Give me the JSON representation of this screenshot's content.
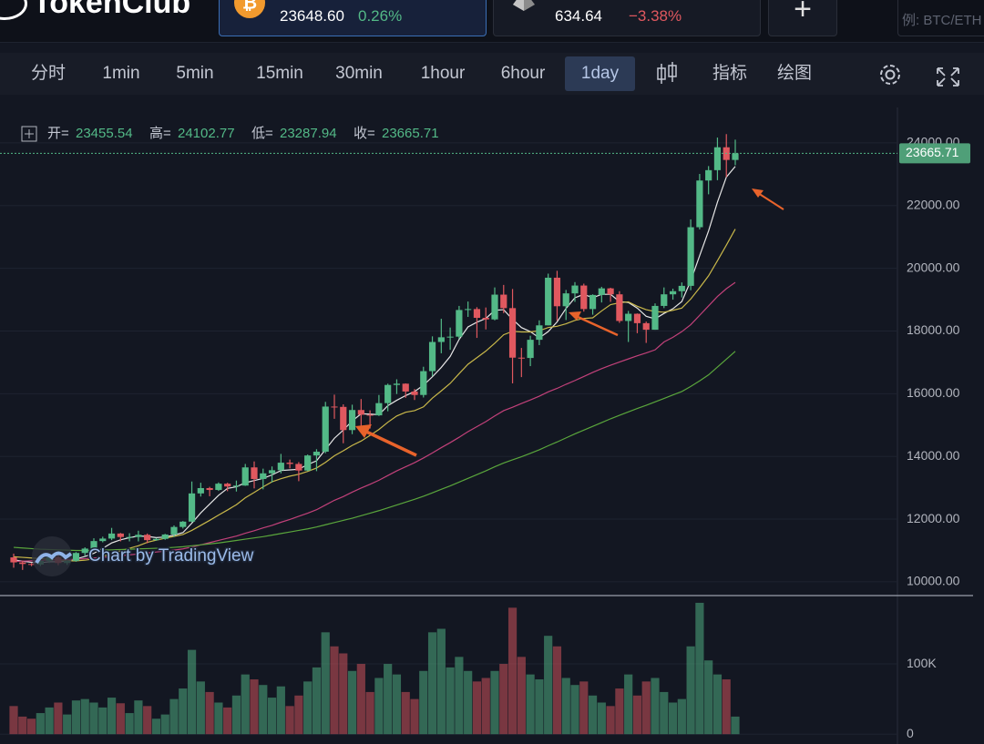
{
  "header": {
    "logo": "TokenClub",
    "tickers": [
      {
        "price": "23648.60",
        "change": "0.26%"
      },
      {
        "price": "634.64",
        "change": "−3.38%"
      }
    ],
    "search_placeholder": "例: BTC/ETH"
  },
  "toolbar": {
    "intervals": [
      "分时",
      "1min",
      "5min",
      "15min",
      "30min",
      "1hour",
      "6hour",
      "1day"
    ],
    "active_index": 7,
    "tools": [
      "指标",
      "绘图"
    ]
  },
  "chart_data": {
    "type": "candlestick",
    "watermark": "Chart by TradingView",
    "legend_labels": [
      "开=",
      "高=",
      "低=",
      "收="
    ],
    "up_color": "#53b987",
    "down_color": "#e0585f",
    "open": [
      10780,
      10620,
      10570,
      10550,
      10670,
      10790,
      10600,
      10670,
      10920,
      11060,
      11300,
      11380,
      11540,
      11430,
      11430,
      11500,
      11330,
      11370,
      11510,
      11750,
      11920,
      12820,
      12990,
      12930,
      13130,
      13040,
      13070,
      13650,
      13280,
      13460,
      13560,
      13800,
      13760,
      13550,
      14030,
      14150,
      15590,
      15580,
      14840,
      15480,
      15330,
      15310,
      15700,
      16280,
      16320,
      16070,
      15960,
      16720,
      17650,
      17800,
      17820,
      18670,
      18700,
      18420,
      18370,
      19160,
      18730,
      17150,
      17140,
      17720,
      18180,
      19700,
      18790,
      19200,
      19450,
      18700,
      19150,
      19360,
      19170,
      18320,
      18550,
      18250,
      18040,
      18800,
      19170,
      19270,
      19440,
      21310,
      22800,
      23130,
      23860,
      23455.54
    ],
    "high": [
      10900,
      10680,
      10600,
      10700,
      10800,
      10950,
      10690,
      10950,
      11100,
      11390,
      11440,
      11720,
      11560,
      11550,
      11630,
      11540,
      11400,
      11530,
      11800,
      11940,
      13200,
      13160,
      13030,
      13170,
      13160,
      13230,
      13760,
      13840,
      13610,
      13680,
      14080,
      13900,
      13820,
      14060,
      14230,
      15740,
      15970,
      15660,
      15650,
      15830,
      15470,
      15960,
      16320,
      16460,
      16330,
      16150,
      16860,
      17830,
      18390,
      18110,
      18800,
      18940,
      18760,
      18750,
      19390,
      19470,
      19340,
      17460,
      17850,
      18340,
      19830,
      19920,
      19310,
      19560,
      19510,
      19170,
      19410,
      19380,
      19270,
      18640,
      18560,
      18300,
      18880,
      19390,
      19350,
      19550,
      21560,
      23010,
      23260,
      24170,
      24280,
      24102.77
    ],
    "low": [
      10450,
      10380,
      10500,
      10500,
      10600,
      10530,
      10540,
      10640,
      10830,
      11010,
      11260,
      11330,
      11290,
      11290,
      11290,
      11230,
      11310,
      11340,
      11430,
      11700,
      11900,
      12720,
      12730,
      12900,
      12890,
      12880,
      13060,
      12980,
      12950,
      13170,
      13460,
      13620,
      13210,
      13530,
      13530,
      14100,
      15200,
      14420,
      14710,
      14880,
      14890,
      15290,
      15440,
      15990,
      15870,
      15800,
      15880,
      16560,
      17290,
      17400,
      17750,
      18450,
      17780,
      18050,
      18340,
      18570,
      16330,
      16530,
      16880,
      17550,
      18180,
      18330,
      18350,
      18930,
      18620,
      18520,
      18910,
      18930,
      18260,
      17650,
      17930,
      17620,
      18040,
      18730,
      19000,
      19070,
      19300,
      21240,
      22360,
      22810,
      22910,
      23287.94
    ],
    "close": [
      10620,
      10570,
      10550,
      10670,
      10790,
      10600,
      10670,
      10920,
      11060,
      11300,
      11380,
      11540,
      11430,
      11430,
      11500,
      11330,
      11370,
      11510,
      11750,
      11920,
      12820,
      12990,
      12930,
      13130,
      13040,
      13070,
      13650,
      13280,
      13460,
      13560,
      13800,
      13760,
      13550,
      14030,
      14150,
      15590,
      15580,
      14840,
      15480,
      15330,
      15310,
      15700,
      16280,
      16320,
      16070,
      15960,
      16720,
      17650,
      17800,
      17820,
      18670,
      18700,
      18420,
      18370,
      19160,
      18730,
      17150,
      17140,
      17720,
      18180,
      19700,
      18790,
      19200,
      19450,
      18700,
      19150,
      19360,
      19170,
      18320,
      18550,
      18250,
      18040,
      18800,
      19170,
      19270,
      19440,
      21310,
      22800,
      23130,
      23860,
      23455.54,
      23665.71
    ],
    "moving_averages": [
      {
        "color": "#e6e6e6",
        "values": [
          10700,
          10660,
          10620,
          10610,
          10640,
          10640,
          10660,
          10730,
          10810,
          10910,
          11070,
          11240,
          11340,
          11410,
          11460,
          11450,
          11410,
          11430,
          11490,
          11570,
          11870,
          12200,
          12480,
          12760,
          12980,
          13030,
          13160,
          13230,
          13300,
          13410,
          13550,
          13570,
          13590,
          13740,
          13860,
          14220,
          14580,
          14840,
          15130,
          15360,
          15350,
          15330,
          15620,
          15790,
          15940,
          16070,
          16270,
          16540,
          16840,
          17190,
          17730,
          18130,
          18280,
          18400,
          18660,
          18680,
          18370,
          18110,
          17980,
          17780,
          17980,
          18290,
          18720,
          19060,
          19170,
          19060,
          19170,
          19170,
          18940,
          18910,
          18730,
          18470,
          18390,
          18560,
          18710,
          18940,
          19600,
          20400,
          21190,
          22110,
          22910,
          23250
        ]
      },
      {
        "color": "#c9b84a",
        "values": [
          10800,
          10780,
          10760,
          10740,
          10720,
          10690,
          10670,
          10670,
          10690,
          10730,
          10810,
          10900,
          10990,
          11070,
          11150,
          11260,
          11330,
          11390,
          11450,
          11510,
          11640,
          11800,
          11960,
          12130,
          12290,
          12460,
          12680,
          12850,
          13030,
          13190,
          13290,
          13370,
          13430,
          13520,
          13630,
          13810,
          14020,
          14180,
          14350,
          14490,
          14670,
          14860,
          15090,
          15290,
          15410,
          15460,
          15580,
          15860,
          16090,
          16330,
          16640,
          16940,
          17150,
          17360,
          17610,
          17880,
          17990,
          17970,
          17970,
          18010,
          18110,
          18150,
          18230,
          18340,
          18400,
          18420,
          18640,
          18840,
          18900,
          18930,
          18790,
          18680,
          18620,
          18600,
          18660,
          18730,
          19020,
          19380,
          19760,
          20240,
          20740,
          21250
        ]
      },
      {
        "color": "#c2417a",
        "values": [
          10650,
          10660,
          10670,
          10680,
          10690,
          10700,
          10710,
          10720,
          10740,
          10760,
          10780,
          10800,
          10830,
          10860,
          10890,
          10920,
          10950,
          10980,
          11010,
          11050,
          11110,
          11180,
          11250,
          11320,
          11390,
          11460,
          11550,
          11630,
          11720,
          11800,
          11900,
          11990,
          12090,
          12190,
          12300,
          12450,
          12600,
          12720,
          12860,
          12990,
          13110,
          13240,
          13390,
          13540,
          13670,
          13800,
          13950,
          14110,
          14280,
          14440,
          14610,
          14790,
          14950,
          15110,
          15290,
          15460,
          15570,
          15690,
          15800,
          15920,
          16060,
          16170,
          16300,
          16420,
          16550,
          16680,
          16800,
          16910,
          17010,
          17110,
          17210,
          17300,
          17400,
          17650,
          17800,
          17980,
          18200,
          18500,
          18800,
          19100,
          19350,
          19550
        ]
      },
      {
        "color": "#5aa63c",
        "values": [
          11100,
          11080,
          11060,
          11040,
          11030,
          11020,
          11010,
          11000,
          11000,
          11000,
          11010,
          11020,
          11030,
          11040,
          11050,
          11060,
          11070,
          11080,
          11100,
          11120,
          11150,
          11180,
          11210,
          11240,
          11280,
          11320,
          11360,
          11400,
          11440,
          11490,
          11540,
          11590,
          11640,
          11690,
          11750,
          11820,
          11890,
          11960,
          12030,
          12110,
          12190,
          12270,
          12360,
          12450,
          12540,
          12630,
          12730,
          12840,
          12950,
          13060,
          13180,
          13300,
          13420,
          13540,
          13670,
          13790,
          13890,
          13990,
          14100,
          14210,
          14340,
          14460,
          14590,
          14720,
          14840,
          14960,
          15080,
          15200,
          15310,
          15420,
          15530,
          15630,
          15740,
          15850,
          15960,
          16070,
          16230,
          16410,
          16600,
          16850,
          17100,
          17350
        ]
      }
    ],
    "ylim": [
      9620,
      25130
    ],
    "yticks": [
      {
        "value": 10000,
        "label": "10000.00"
      },
      {
        "value": 12000,
        "label": "12000.00"
      },
      {
        "value": 14000,
        "label": "14000.00"
      },
      {
        "value": 16000,
        "label": "16000.00"
      },
      {
        "value": 18000,
        "label": "18000.00"
      },
      {
        "value": 20000,
        "label": "20000.00"
      },
      {
        "value": 22000,
        "label": "22000.00"
      },
      {
        "value": 24000,
        "label": "24000.00"
      }
    ],
    "grid": true,
    "volume": {
      "values": [
        40000,
        25000,
        22000,
        30000,
        38000,
        45000,
        28000,
        48000,
        50000,
        45000,
        38000,
        52000,
        44000,
        30000,
        48000,
        40000,
        22000,
        28000,
        50000,
        65000,
        120000,
        75000,
        60000,
        45000,
        38000,
        55000,
        85000,
        78000,
        70000,
        52000,
        68000,
        40000,
        55000,
        75000,
        95000,
        145000,
        125000,
        115000,
        90000,
        100000,
        60000,
        80000,
        100000,
        85000,
        60000,
        50000,
        90000,
        145000,
        150000,
        95000,
        110000,
        90000,
        75000,
        80000,
        90000,
        100000,
        180000,
        110000,
        85000,
        78000,
        140000,
        125000,
        80000,
        70000,
        75000,
        55000,
        45000,
        40000,
        65000,
        85000,
        55000,
        75000,
        80000,
        60000,
        45000,
        50000,
        125000,
        187000,
        105000,
        85000,
        78000,
        25000
      ],
      "ylim": [
        -14000,
        196000
      ],
      "yticks": [
        0,
        {
          "value": 100000,
          "label": "100K"
        }
      ]
    }
  }
}
